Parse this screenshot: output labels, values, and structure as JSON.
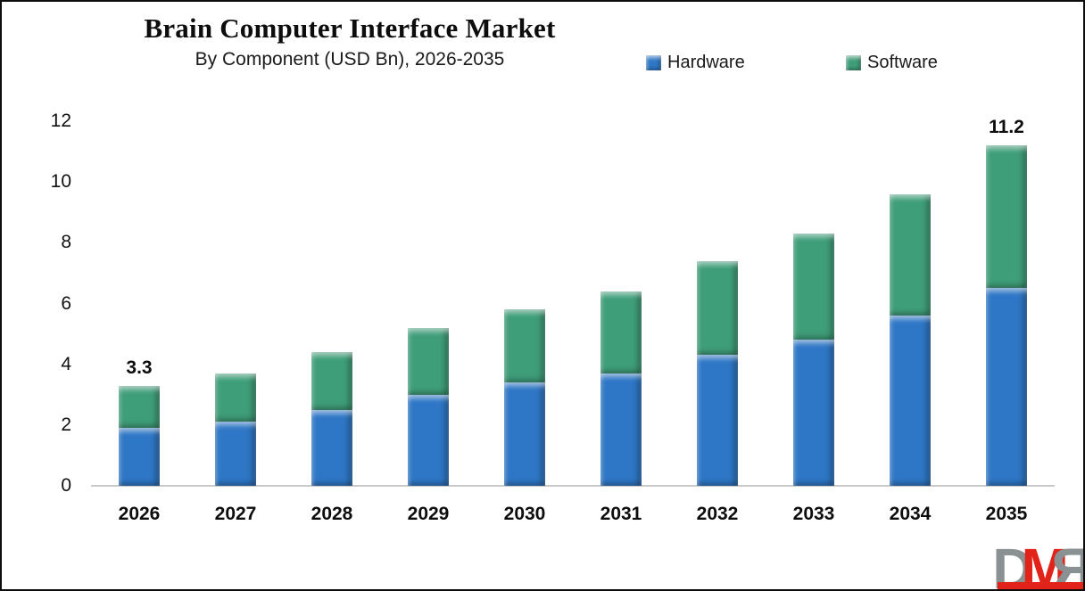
{
  "header": {
    "title": "Brain Computer Interface Market",
    "subtitle": "By Component (USD Bn), 2026-2035"
  },
  "legend": {
    "items": [
      {
        "label": "Hardware",
        "color": "#2e77c6"
      },
      {
        "label": "Software",
        "color": "#3f9e7a"
      }
    ],
    "position": "top-right"
  },
  "chart_data": {
    "type": "bar",
    "stacked": true,
    "title": "Brain Computer Interface Market",
    "subtitle": "By Component (USD Bn), 2026-2035",
    "xlabel": "",
    "ylabel": "",
    "categories": [
      "2026",
      "2027",
      "2028",
      "2029",
      "2030",
      "2031",
      "2032",
      "2033",
      "2034",
      "2035"
    ],
    "series": [
      {
        "name": "Hardware",
        "color": "#2e77c6",
        "values": [
          1.9,
          2.1,
          2.5,
          3.0,
          3.4,
          3.7,
          4.3,
          4.8,
          5.6,
          6.5
        ]
      },
      {
        "name": "Software",
        "color": "#3f9e7a",
        "values": [
          1.4,
          1.6,
          1.9,
          2.2,
          2.4,
          2.7,
          3.1,
          3.5,
          4.0,
          4.7
        ]
      }
    ],
    "totals": [
      3.3,
      3.7,
      4.4,
      5.2,
      5.8,
      6.4,
      7.4,
      8.3,
      9.6,
      11.2
    ],
    "annotations": [
      {
        "category": "2026",
        "text": "3.3"
      },
      {
        "category": "2035",
        "text": "11.2"
      }
    ],
    "ylim": [
      0,
      12
    ],
    "yticks": [
      0,
      2,
      4,
      6,
      8,
      10,
      12
    ],
    "grid": false,
    "legend_position": "top"
  },
  "watermark": {
    "letters": {
      "d": "D",
      "m": "M",
      "r": "R"
    },
    "gray": "#8a9192",
    "red": "#e2231a"
  }
}
